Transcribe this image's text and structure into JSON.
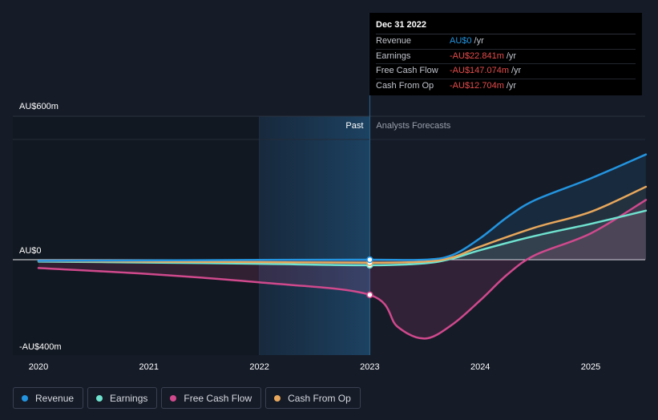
{
  "chart_data": {
    "type": "line",
    "y_unit": "AU$m",
    "ylim": [
      -400,
      600
    ],
    "y_tick_labels": [
      "AU$600m",
      "AU$0",
      "-AU$400m"
    ],
    "x_tick_labels": [
      "2020",
      "2021",
      "2022",
      "2023",
      "2024",
      "2025"
    ],
    "region_labels": {
      "past": "Past",
      "forecast": "Analysts Forecasts"
    },
    "divider_x": 2023.0,
    "series": [
      {
        "name": "Revenue",
        "color": "#2394df",
        "x": [
          2020.0,
          2021.0,
          2022.0,
          2023.0,
          2023.5,
          2023.75,
          2024.0,
          2024.25,
          2024.5,
          2025.0,
          2025.5
        ],
        "y": [
          -5,
          -3,
          -1,
          0,
          0,
          20,
          90,
          180,
          250,
          340,
          440
        ]
      },
      {
        "name": "Earnings",
        "color": "#6fe3cf",
        "x": [
          2020.0,
          2021.0,
          2022.0,
          2023.0,
          2023.5,
          2023.75,
          2024.0,
          2024.5,
          2025.0,
          2025.5
        ],
        "y": [
          -8,
          -12,
          -17,
          -23,
          -15,
          5,
          40,
          100,
          150,
          205
        ]
      },
      {
        "name": "Free Cash Flow",
        "color": "#d0498d",
        "x": [
          2020.0,
          2021.0,
          2022.0,
          2023.0,
          2023.25,
          2023.5,
          2023.75,
          2024.0,
          2024.25,
          2024.5,
          2025.0,
          2025.5
        ],
        "y": [
          -35,
          -60,
          -95,
          -147,
          -280,
          -330,
          -270,
          -170,
          -60,
          20,
          110,
          250
        ]
      },
      {
        "name": "Cash From Op",
        "color": "#e8a75b",
        "x": [
          2020.0,
          2021.0,
          2022.0,
          2023.0,
          2023.5,
          2023.75,
          2024.0,
          2024.5,
          2025.0,
          2025.5
        ],
        "y": [
          -6,
          -8,
          -10,
          -12.7,
          -8,
          10,
          55,
          135,
          200,
          305
        ]
      }
    ]
  },
  "tooltip": {
    "date": "Dec 31 2022",
    "rows": [
      {
        "label": "Revenue",
        "value": "AU$0",
        "unit": "/yr",
        "color": "#2394df"
      },
      {
        "label": "Earnings",
        "value": "-AU$22.841m",
        "unit": "/yr",
        "color": "#e64b4b"
      },
      {
        "label": "Free Cash Flow",
        "value": "-AU$147.074m",
        "unit": "/yr",
        "color": "#e64b4b"
      },
      {
        "label": "Cash From Op",
        "value": "-AU$12.704m",
        "unit": "/yr",
        "color": "#e64b4b"
      }
    ]
  },
  "legend": [
    {
      "label": "Revenue",
      "color": "#2394df"
    },
    {
      "label": "Earnings",
      "color": "#6fe3cf"
    },
    {
      "label": "Free Cash Flow",
      "color": "#d0498d"
    },
    {
      "label": "Cash From Op",
      "color": "#e8a75b"
    }
  ]
}
